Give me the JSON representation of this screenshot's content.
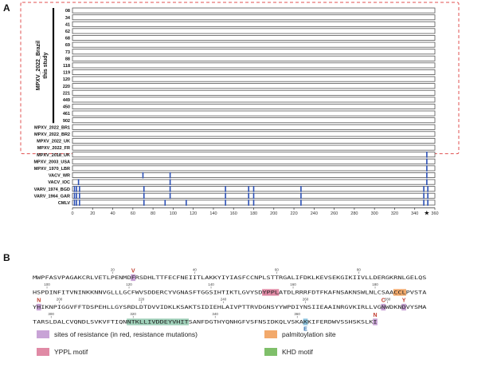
{
  "panels": {
    "a": "A",
    "b": "B"
  },
  "group_label_line1": "MPXV_2022_Brazil",
  "group_label_line2": "this study",
  "rows": [
    {
      "label": "08",
      "group": "brazil",
      "mutations": []
    },
    {
      "label": "34",
      "group": "brazil",
      "mutations": []
    },
    {
      "label": "41",
      "group": "brazil",
      "mutations": []
    },
    {
      "label": "62",
      "group": "brazil",
      "mutations": []
    },
    {
      "label": "68",
      "group": "brazil",
      "mutations": []
    },
    {
      "label": "69",
      "group": "brazil",
      "mutations": []
    },
    {
      "label": "73",
      "group": "brazil",
      "mutations": []
    },
    {
      "label": "88",
      "group": "brazil",
      "mutations": []
    },
    {
      "label": "118",
      "group": "brazil",
      "mutations": []
    },
    {
      "label": "119",
      "group": "brazil",
      "mutations": []
    },
    {
      "label": "120",
      "group": "brazil",
      "mutations": []
    },
    {
      "label": "220",
      "group": "brazil",
      "mutations": []
    },
    {
      "label": "221",
      "group": "brazil",
      "mutations": []
    },
    {
      "label": "449",
      "group": "brazil",
      "mutations": []
    },
    {
      "label": "450",
      "group": "brazil",
      "mutations": []
    },
    {
      "label": "461",
      "group": "brazil",
      "mutations": []
    },
    {
      "label": "902",
      "group": "brazil",
      "mutations": []
    },
    {
      "label": "MPXV_2022_BR1",
      "group": "ref2022",
      "mutations": []
    },
    {
      "label": "MPXV_2022_BR2",
      "group": "ref2022",
      "mutations": []
    },
    {
      "label": "MPXV_2022_UK",
      "group": "ref2022",
      "mutations": []
    },
    {
      "label": "MPXV_2022_FR",
      "group": "ref2022",
      "mutations": []
    },
    {
      "label": "MPXV_2018_UK",
      "group": "other",
      "mutations": [
        352
      ]
    },
    {
      "label": "MPXV_2003_USA",
      "group": "other",
      "mutations": [
        352
      ]
    },
    {
      "label": "MPXV_1970_LBR",
      "group": "other",
      "mutations": [
        352
      ]
    },
    {
      "label": "VACV_WR",
      "group": "other",
      "mutations": [
        70,
        97,
        352
      ]
    },
    {
      "label": "VACV_IOC",
      "group": "other",
      "mutations": [
        6,
        97,
        352
      ]
    },
    {
      "label": "VARV_1974_BGD",
      "group": "other",
      "mutations": [
        2,
        4,
        7,
        71,
        97,
        152,
        175,
        180,
        227,
        349,
        353
      ]
    },
    {
      "label": "VARV_1964_GAR",
      "group": "other",
      "mutations": [
        2,
        4,
        7,
        71,
        97,
        152,
        175,
        180,
        227,
        349,
        353
      ]
    },
    {
      "label": "CMLV",
      "group": "other",
      "mutations": [
        2,
        4,
        7,
        71,
        92,
        113,
        152,
        175,
        180,
        227,
        349,
        353
      ]
    }
  ],
  "axis": {
    "min": 0,
    "max": 360,
    "ticks": [
      "0",
      "20",
      "40",
      "60",
      "80",
      "100",
      "120",
      "140",
      "160",
      "180",
      "200",
      "220",
      "240",
      "260",
      "280",
      "300",
      "320",
      "340",
      "360"
    ],
    "star_label": "★",
    "star_position": 352
  },
  "sequence": {
    "lines": [
      {
        "residues": "MWPFASVPAGAKCRLVETLPENMDFRSDHLTTFECFNEIITLAKKYIYIASFCCNPLSTTRGALIFDKLKEVSEKGIKIIVLLDERGKRNLGELQS",
        "numbers": [
          {
            "label": "20",
            "index": 19
          },
          {
            "label": "40",
            "index": 39
          },
          {
            "label": "60",
            "index": 59
          },
          {
            "label": "80",
            "index": 79
          }
        ],
        "highlights": [
          {
            "start": 24,
            "end": 25,
            "kind": "resistance"
          }
        ],
        "mutations": [
          {
            "label": "V",
            "index": 24,
            "pos": "above"
          }
        ]
      },
      {
        "residues": "HSPDINFITVNINKKNNVGLLLGCFWVSDDERCYVGNASFTGGSIHTIKTLGVYSDYPPLATDLRRRFDTFKAFNSAKNSWLNLCSAACCLPVSTA",
        "numbers": [
          {
            "label": "100",
            "index": 3
          },
          {
            "label": "120",
            "index": 23
          },
          {
            "label": "140",
            "index": 43
          },
          {
            "label": "160",
            "index": 63
          },
          {
            "label": "180",
            "index": 83
          }
        ],
        "highlights": [
          {
            "start": 56,
            "end": 60,
            "kind": "ypple"
          },
          {
            "start": 88,
            "end": 91,
            "kind": "palm"
          }
        ],
        "mutations": []
      },
      {
        "residues": "YHIKNPIGGVFFTDSPEHLLGYSRDLDTDVVIDKLKSAKTSIDIEHLAIVPTTRVDGNSYYWPDIYNSIIEAAINRGVKIRLLVGNWDKNDVYSMA",
        "numbers": [
          {
            "label": "200",
            "index": 6
          },
          {
            "label": "220",
            "index": 26
          },
          {
            "label": "240",
            "index": 46
          },
          {
            "label": "260",
            "index": 66
          },
          {
            "label": "280",
            "index": 86
          }
        ],
        "highlights": [
          {
            "start": 1,
            "end": 2,
            "kind": "resistance"
          },
          {
            "start": 85,
            "end": 86,
            "kind": "resistance"
          },
          {
            "start": 90,
            "end": 91,
            "kind": "resistance"
          }
        ],
        "mutations": [
          {
            "label": "N",
            "index": 1,
            "pos": "above"
          },
          {
            "label": "C",
            "index": 85,
            "pos": "above"
          },
          {
            "label": "Y",
            "index": 90,
            "pos": "above"
          }
        ]
      },
      {
        "residues": "TARSLDALCVQNDLSVKVFTIQNNTKLLIVDDEYVHITSANFDGTHYQNHGFVSFNSIDKQLVSKAKKIFERDWVSSHSKSLKI",
        "numbers": [
          {
            "label": "300",
            "index": 4
          },
          {
            "label": "320",
            "index": 24
          },
          {
            "label": "340",
            "index": 44
          },
          {
            "label": "360",
            "index": 64
          }
        ],
        "highlights": [
          {
            "start": 23,
            "end": 38,
            "kind": "khd"
          },
          {
            "start": 66,
            "end": 67,
            "kind": "khdblue"
          },
          {
            "start": 83,
            "end": 84,
            "kind": "resistance"
          }
        ],
        "mutations": [
          {
            "label": "E",
            "index": 66,
            "pos": "below",
            "color": "blue"
          },
          {
            "label": "N",
            "index": 83,
            "pos": "above"
          }
        ]
      }
    ]
  },
  "legend": [
    {
      "text": "sites of resistance (in red, resistance mutations)",
      "color": "#c8a3d6"
    },
    {
      "text": "palmitoylation site",
      "color": "#f2a96b"
    },
    {
      "text": "YPPL motif",
      "color": "#e08aa5"
    },
    {
      "text": "KHD motif",
      "color": "#7fbf6a"
    }
  ],
  "colors": {
    "dashed_box": "#e05050",
    "mutation_bar": "#2a4fb5",
    "row_outline": "#555555",
    "resistance": "#c8a3d6",
    "palm": "#f2a96b",
    "ypple": "#e08aa5",
    "khd": "#9fd0b9",
    "khd_blue": "#8ec5e0"
  }
}
